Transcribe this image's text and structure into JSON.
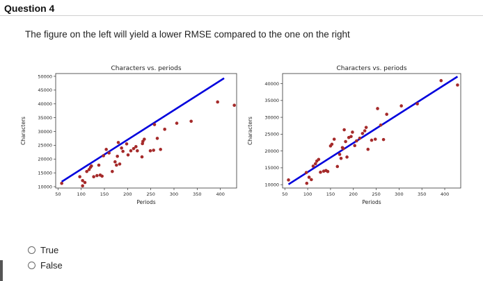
{
  "question": {
    "title": "Question 4",
    "text": "The figure on the left will yield a lower RMSE compared to the one on the right"
  },
  "options": [
    {
      "label": "True",
      "selected": false
    },
    {
      "label": "False",
      "selected": false
    }
  ],
  "colors": {
    "points": "#a52a2a",
    "line": "#0000dd"
  },
  "chart_data": [
    {
      "type": "scatter",
      "title": "Characters vs. periods",
      "xlabel": "Periods",
      "ylabel": "Characters",
      "xlim": [
        45,
        435
      ],
      "ylim": [
        9500,
        51000
      ],
      "xticks": [
        50,
        100,
        150,
        200,
        250,
        300,
        350,
        400
      ],
      "yticks": [
        10000,
        15000,
        20000,
        25000,
        30000,
        35000,
        40000,
        45000,
        50000
      ],
      "grid": false,
      "points": [
        [
          58,
          11200
        ],
        [
          97,
          13600
        ],
        [
          103,
          12200
        ],
        [
          103,
          10300
        ],
        [
          108,
          11500
        ],
        [
          112,
          15500
        ],
        [
          117,
          16200
        ],
        [
          120,
          17000
        ],
        [
          122,
          17500
        ],
        [
          127,
          13600
        ],
        [
          134,
          14000
        ],
        [
          138,
          17800
        ],
        [
          141,
          14200
        ],
        [
          145,
          13800
        ],
        [
          148,
          21200
        ],
        [
          154,
          23500
        ],
        [
          160,
          22200
        ],
        [
          167,
          15500
        ],
        [
          173,
          19000
        ],
        [
          176,
          17800
        ],
        [
          178,
          21000
        ],
        [
          180,
          26000
        ],
        [
          183,
          18200
        ],
        [
          187,
          24000
        ],
        [
          190,
          22800
        ],
        [
          198,
          25500
        ],
        [
          201,
          21500
        ],
        [
          207,
          23000
        ],
        [
          213,
          23800
        ],
        [
          218,
          24500
        ],
        [
          221,
          23000
        ],
        [
          231,
          20800
        ],
        [
          232,
          25600
        ],
        [
          233,
          26400
        ],
        [
          236,
          27200
        ],
        [
          249,
          23000
        ],
        [
          256,
          23200
        ],
        [
          258,
          32500
        ],
        [
          264,
          27500
        ],
        [
          271,
          23500
        ],
        [
          280,
          30800
        ],
        [
          306,
          33000
        ],
        [
          337,
          33700
        ],
        [
          394,
          40700
        ],
        [
          430,
          39500
        ]
      ],
      "fit_line": {
        "x": [
          58,
          408
        ],
        "y": [
          11800,
          49300
        ]
      }
    },
    {
      "type": "scatter",
      "title": "Characters vs. periods",
      "xlabel": "Periods",
      "ylabel": "Characters",
      "xlim": [
        45,
        435
      ],
      "ylim": [
        9000,
        43000
      ],
      "xticks": [
        50,
        100,
        150,
        200,
        250,
        300,
        350,
        400
      ],
      "yticks": [
        10000,
        15000,
        20000,
        25000,
        30000,
        35000,
        40000
      ],
      "grid": false,
      "points": [
        [
          58,
          11400
        ],
        [
          97,
          13600
        ],
        [
          103,
          12200
        ],
        [
          98,
          10400
        ],
        [
          108,
          11500
        ],
        [
          112,
          15500
        ],
        [
          117,
          16200
        ],
        [
          120,
          17000
        ],
        [
          124,
          17500
        ],
        [
          128,
          13700
        ],
        [
          135,
          14000
        ],
        [
          140,
          14200
        ],
        [
          144,
          13900
        ],
        [
          150,
          21500
        ],
        [
          153,
          22000
        ],
        [
          158,
          23500
        ],
        [
          165,
          15400
        ],
        [
          170,
          19000
        ],
        [
          173,
          17800
        ],
        [
          176,
          21000
        ],
        [
          178,
          20700
        ],
        [
          180,
          26300
        ],
        [
          183,
          22800
        ],
        [
          186,
          18200
        ],
        [
          190,
          24000
        ],
        [
          195,
          24300
        ],
        [
          198,
          25600
        ],
        [
          203,
          21600
        ],
        [
          207,
          23000
        ],
        [
          214,
          23800
        ],
        [
          220,
          25200
        ],
        [
          225,
          26000
        ],
        [
          228,
          27000
        ],
        [
          232,
          20500
        ],
        [
          240,
          23200
        ],
        [
          248,
          23500
        ],
        [
          253,
          32600
        ],
        [
          260,
          27700
        ],
        [
          266,
          23400
        ],
        [
          273,
          30900
        ],
        [
          305,
          33400
        ],
        [
          340,
          34000
        ],
        [
          392,
          40900
        ],
        [
          428,
          39600
        ]
      ],
      "fit_line": {
        "x": [
          58,
          428
        ],
        "y": [
          10100,
          42100
        ]
      }
    }
  ]
}
